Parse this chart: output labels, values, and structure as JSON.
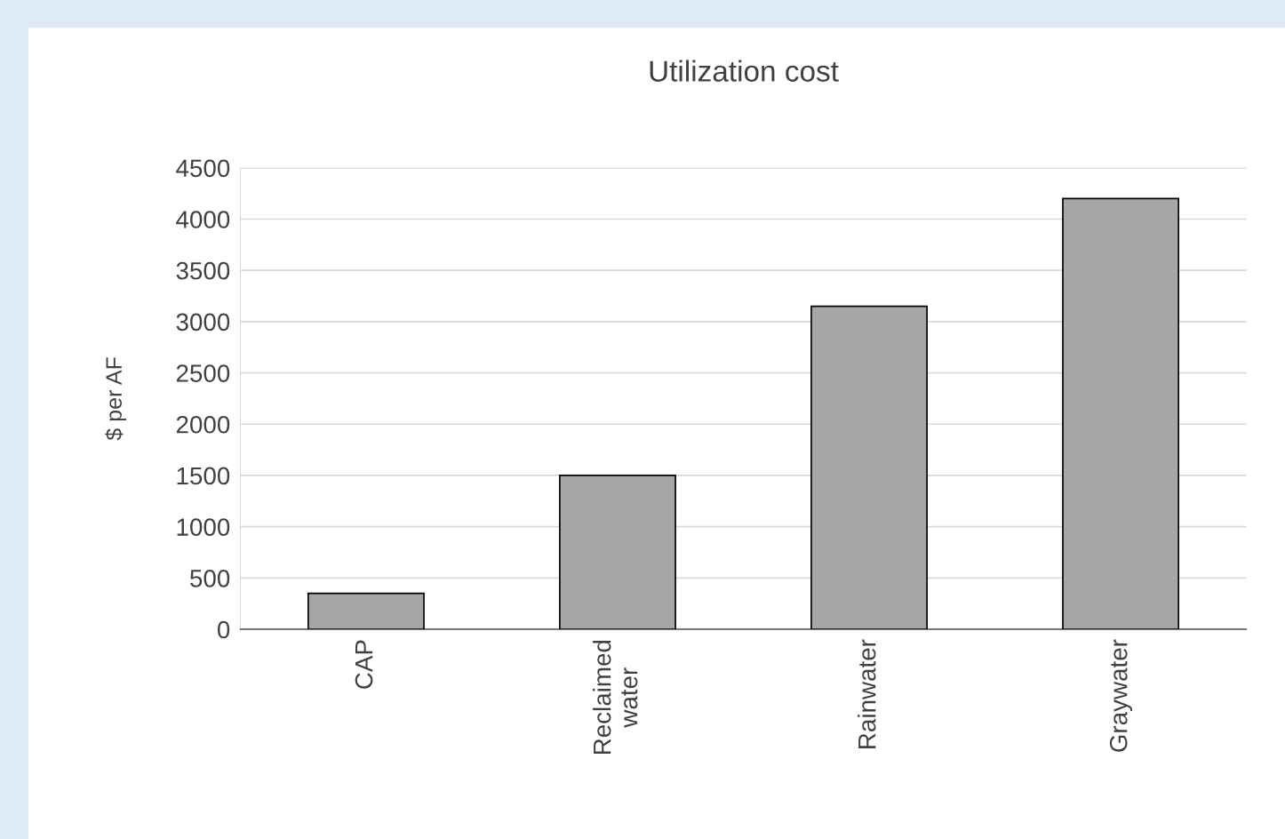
{
  "chart_data": {
    "type": "bar",
    "title": "Utilization cost",
    "ylabel": "$ per AF",
    "categories": [
      "CAP",
      "Reclaimed\nwater",
      "Rainwater",
      "Graywater"
    ],
    "values": [
      350,
      1500,
      3150,
      4200
    ],
    "color": "#a6a6a6",
    "ylim": [
      0,
      4500
    ],
    "yticks": [
      0,
      500,
      1000,
      1500,
      2000,
      2500,
      3000,
      3500,
      4000,
      4500
    ],
    "grid": "y"
  }
}
